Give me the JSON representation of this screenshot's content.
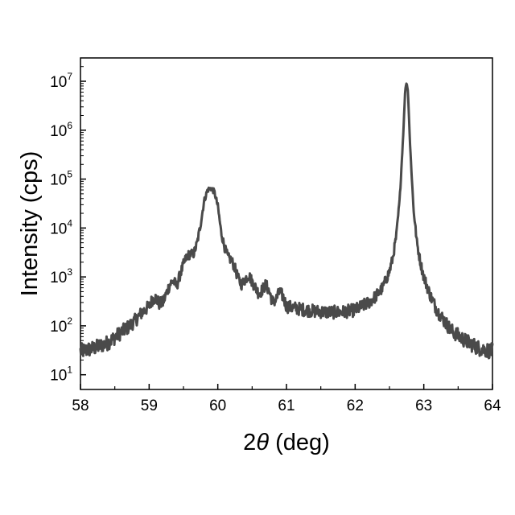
{
  "chart_data": {
    "type": "line",
    "title": "",
    "xlabel_prefix": "2",
    "xlabel_symbol": "θ",
    "xlabel_suffix": " (deg)",
    "ylabel": "Intensity (cps)",
    "xlim": [
      58,
      64
    ],
    "ylim": [
      5,
      30000000
    ],
    "yscale": "log",
    "grid": false,
    "legend": "none",
    "line_color": "#4a4a4a",
    "x_ticks": [
      {
        "value": 58,
        "label": "58"
      },
      {
        "value": 59,
        "label": "59"
      },
      {
        "value": 60,
        "label": "60"
      },
      {
        "value": 61,
        "label": "61"
      },
      {
        "value": 62,
        "label": "62"
      },
      {
        "value": 63,
        "label": "63"
      },
      {
        "value": 64,
        "label": "64"
      }
    ],
    "y_ticks": [
      {
        "value": 10,
        "base": "10",
        "exponent": "1"
      },
      {
        "value": 100,
        "base": "10",
        "exponent": "2"
      },
      {
        "value": 1000,
        "base": "10",
        "exponent": "3"
      },
      {
        "value": 10000,
        "base": "10",
        "exponent": "4"
      },
      {
        "value": 100000,
        "base": "10",
        "exponent": "5"
      },
      {
        "value": 1000000,
        "base": "10",
        "exponent": "6"
      },
      {
        "value": 10000000,
        "base": "10",
        "exponent": "7"
      }
    ],
    "series": [
      {
        "x": [
          58.0,
          58.2,
          58.4,
          58.6,
          58.7,
          58.8,
          58.9,
          59.0,
          59.05,
          59.1,
          59.15,
          59.2,
          59.25,
          59.3,
          59.35,
          59.4,
          59.45,
          59.5,
          59.55,
          59.6,
          59.65,
          59.7,
          59.75,
          59.8,
          59.85,
          59.9,
          59.95,
          60.0,
          60.05,
          60.1,
          60.15,
          60.2,
          60.25,
          60.3,
          60.35,
          60.4,
          60.45,
          60.5,
          60.55,
          60.6,
          60.65,
          60.7,
          60.75,
          60.8,
          60.85,
          60.9,
          60.95,
          61.0,
          61.2,
          61.4,
          61.6,
          61.8,
          62.0,
          62.2,
          62.3,
          62.4,
          62.5,
          62.55,
          62.6,
          62.65,
          62.7,
          62.73,
          62.75,
          62.77,
          62.8,
          62.85,
          62.9,
          62.95,
          63.0,
          63.1,
          63.2,
          63.4,
          63.6,
          63.8,
          64.0
        ],
        "y": [
          30,
          35,
          45,
          75,
          95,
          130,
          190,
          250,
          350,
          370,
          280,
          300,
          450,
          700,
          850,
          650,
          1100,
          1800,
          2700,
          2900,
          3000,
          5000,
          12000,
          35000,
          60000,
          65000,
          55000,
          28000,
          8000,
          4000,
          2500,
          2200,
          1500,
          900,
          700,
          900,
          1100,
          800,
          600,
          450,
          550,
          700,
          500,
          300,
          350,
          500,
          400,
          250,
          220,
          200,
          190,
          190,
          210,
          300,
          400,
          600,
          1300,
          2500,
          7000,
          40000,
          800000,
          7000000,
          9500000,
          6000000,
          500000,
          25000,
          5000,
          2000,
          1000,
          400,
          200,
          80,
          50,
          35,
          30
        ]
      }
    ]
  }
}
